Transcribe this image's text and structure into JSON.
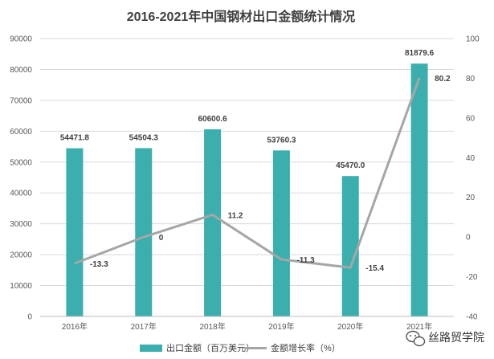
{
  "chart_data": {
    "type": "bar",
    "title": "2016-2021年中国钢材出口金额统计情况",
    "categories": [
      "2016年",
      "2017年",
      "2018年",
      "2019年",
      "2020年",
      "2021年"
    ],
    "series": [
      {
        "name": "出口金额（百万美元）",
        "type": "bar",
        "axis": "left",
        "color": "#3AAFAE",
        "values": [
          54471.8,
          54504.3,
          60600.6,
          53760.3,
          45470.0,
          81879.6
        ],
        "labels": [
          "54471.8",
          "54504.3",
          "60600.6",
          "53760.3",
          "45470.0",
          "81879.6"
        ]
      },
      {
        "name": "金额增长率（%）",
        "type": "line",
        "axis": "right",
        "color": "#A6A6A6",
        "values": [
          -13.3,
          0,
          11.2,
          -11.3,
          -15.4,
          80.2
        ],
        "labels": [
          "-13.3",
          "0",
          "11.2",
          "-11.3",
          "-15.4",
          "80.2"
        ]
      }
    ],
    "y_left": {
      "min": 0,
      "max": 90000,
      "step": 10000
    },
    "y_right": {
      "min": -40,
      "max": 100,
      "step": 20
    },
    "grid": true,
    "legend": "bottom"
  },
  "watermark": {
    "text": "丝路贸学院",
    "icon": "wechat-icon"
  }
}
